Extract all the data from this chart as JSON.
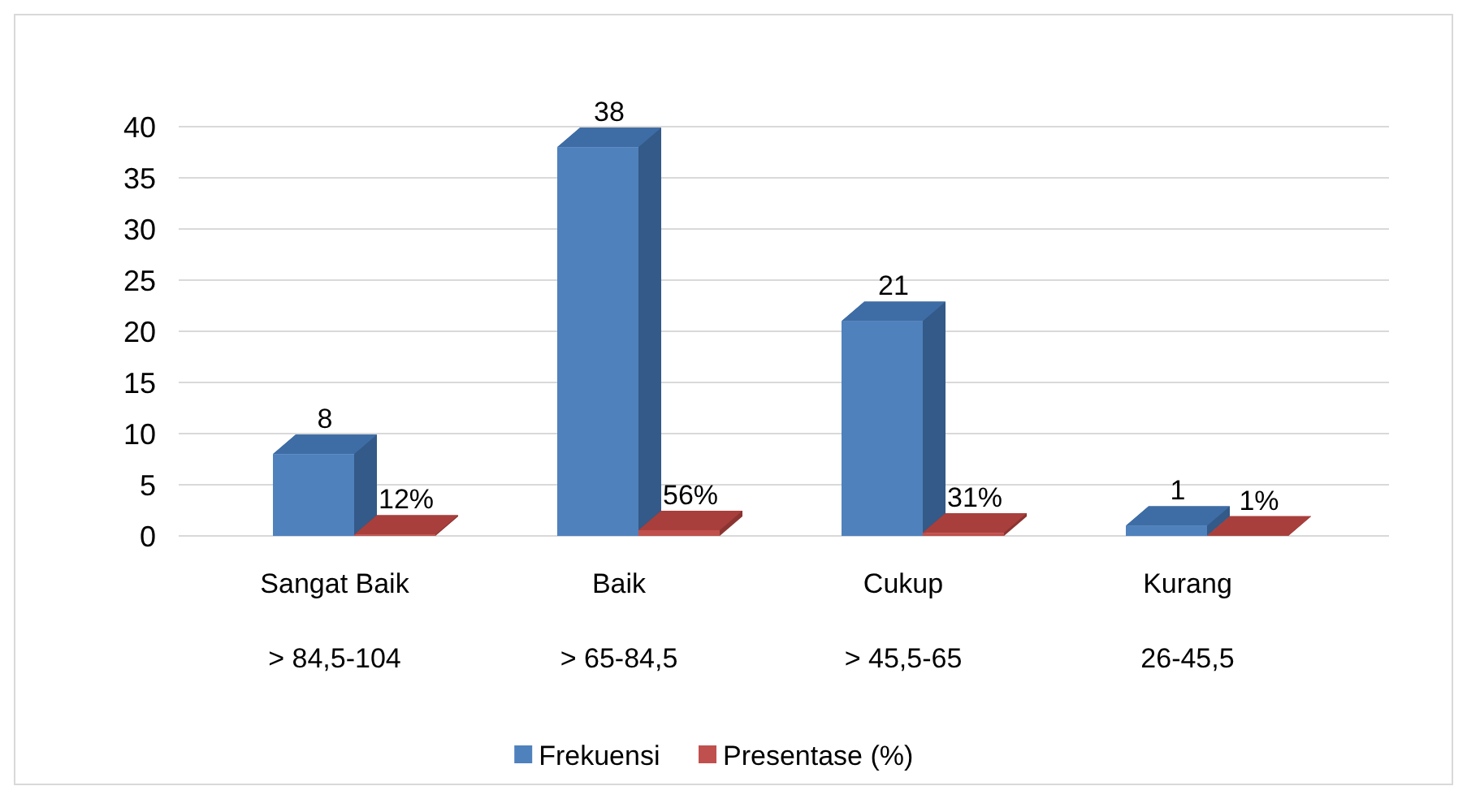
{
  "chart_data": {
    "type": "bar",
    "categories": [
      "Sangat Baik\n> 84,5-104",
      "Baik\n> 65-84,5",
      "Cukup\n> 45,5-65",
      "Kurang\n26-45,5"
    ],
    "series": [
      {
        "name": "Frekuensi",
        "color": "#4f81bd",
        "values": [
          8,
          38,
          21,
          1
        ],
        "value_labels": [
          "8",
          "38",
          "21",
          "1"
        ]
      },
      {
        "name": "Presentase (%)",
        "color": "#c0504d",
        "values": [
          0.12,
          0.56,
          0.31,
          0.01
        ],
        "value_labels": [
          "12%",
          "56%",
          "31%",
          "1%"
        ]
      }
    ],
    "ylim": [
      0,
      40
    ],
    "yticks": [
      0,
      5,
      10,
      15,
      20,
      25,
      30,
      35,
      40
    ],
    "grid": "y",
    "legend": "bottom"
  }
}
